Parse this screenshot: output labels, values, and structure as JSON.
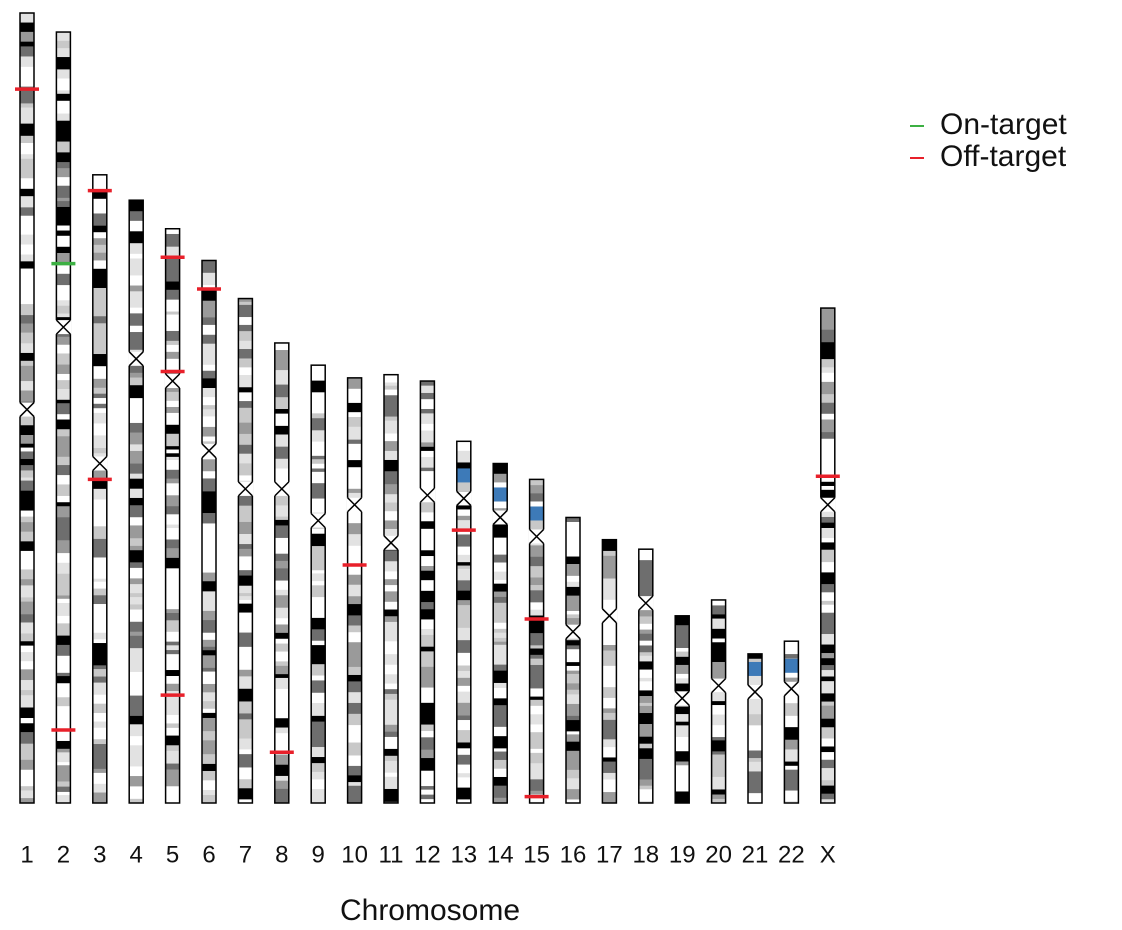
{
  "chart_data": {
    "type": "ideogram",
    "x_label": "Chromosome",
    "categories": [
      "1",
      "2",
      "3",
      "4",
      "5",
      "6",
      "7",
      "8",
      "9",
      "10",
      "11",
      "12",
      "13",
      "14",
      "15",
      "16",
      "17",
      "18",
      "19",
      "20",
      "21",
      "22",
      "X"
    ],
    "lengths": [
      249,
      243,
      198,
      190,
      181,
      171,
      159,
      145,
      138,
      134,
      135,
      133,
      114,
      107,
      102,
      90,
      83,
      80,
      59,
      64,
      47,
      51,
      156
    ],
    "centromeres": [
      125,
      93,
      91,
      50,
      48,
      60,
      60,
      46,
      49,
      40,
      53,
      36,
      18,
      17,
      18,
      36,
      24,
      17,
      26,
      27,
      12,
      15,
      62
    ],
    "legend": "upper right",
    "series": [
      {
        "name": "On-target",
        "color": "#3cb043",
        "chromosome": [
          "2"
        ],
        "positions": [
          73
        ]
      },
      {
        "name": "Off-target",
        "color": "#e8202a",
        "chromosome": [
          "1",
          "2",
          "3",
          "3",
          "5",
          "5",
          "5",
          "6",
          "8",
          "10",
          "13",
          "15",
          "15",
          "X"
        ],
        "positions": [
          24,
          220,
          5,
          96,
          9,
          45,
          147,
          9,
          129,
          59,
          28,
          44,
          100,
          53
        ]
      }
    ]
  }
}
